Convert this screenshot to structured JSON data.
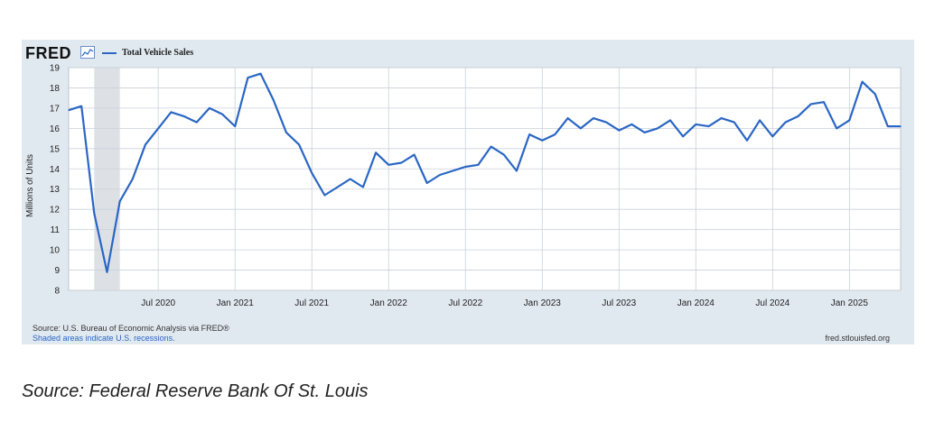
{
  "brand": {
    "logo_text": "FRED"
  },
  "footer": {
    "source": "Source: U.S. Bureau of Economic Analysis via FRED®",
    "recession_note": "Shaded areas indicate U.S. recessions.",
    "url": "fred.stlouisfed.org"
  },
  "caption": "Source: Federal Reserve Bank Of St. Louis",
  "chart_data": {
    "type": "line",
    "title": "",
    "xlabel": "",
    "ylabel": "Millions of Units",
    "ylim": [
      8,
      19
    ],
    "yticks": [
      8,
      9,
      10,
      11,
      12,
      13,
      14,
      15,
      16,
      17,
      18,
      19
    ],
    "x_start": "2020-01",
    "x_end": "2025-06",
    "xtick_labels": [
      "Jul 2020",
      "Jan 2021",
      "Jul 2021",
      "Jan 2022",
      "Jul 2022",
      "Jan 2023",
      "Jul 2023",
      "Jan 2024",
      "Jul 2024",
      "Jan 2025"
    ],
    "xtick_months": [
      "2020-07",
      "2021-01",
      "2021-07",
      "2022-01",
      "2022-07",
      "2023-01",
      "2023-07",
      "2024-01",
      "2024-07",
      "2025-01"
    ],
    "grid": true,
    "legend_position": "top-left",
    "recessions": [
      {
        "start": "2020-02",
        "end": "2020-04"
      }
    ],
    "series": [
      {
        "name": "Total Vehicle Sales",
        "color": "#2a66c4",
        "x": [
          "2019-12",
          "2020-01",
          "2020-02",
          "2020-03",
          "2020-04",
          "2020-05",
          "2020-06",
          "2020-07",
          "2020-08",
          "2020-09",
          "2020-10",
          "2020-11",
          "2020-12",
          "2021-01",
          "2021-02",
          "2021-03",
          "2021-04",
          "2021-05",
          "2021-06",
          "2021-07",
          "2021-08",
          "2021-09",
          "2021-10",
          "2021-11",
          "2021-12",
          "2022-01",
          "2022-02",
          "2022-03",
          "2022-04",
          "2022-05",
          "2022-06",
          "2022-07",
          "2022-08",
          "2022-09",
          "2022-10",
          "2022-11",
          "2022-12",
          "2023-01",
          "2023-02",
          "2023-03",
          "2023-04",
          "2023-05",
          "2023-06",
          "2023-07",
          "2023-08",
          "2023-09",
          "2023-10",
          "2023-11",
          "2023-12",
          "2024-01",
          "2024-02",
          "2024-03",
          "2024-04",
          "2024-05",
          "2024-06",
          "2024-07",
          "2024-08",
          "2024-09",
          "2024-10",
          "2024-11",
          "2024-12",
          "2025-01",
          "2025-02",
          "2025-03",
          "2025-04",
          "2025-05"
        ],
        "values": [
          16.9,
          17.1,
          11.8,
          8.9,
          12.4,
          13.5,
          15.2,
          16.0,
          16.8,
          16.6,
          16.3,
          17.0,
          16.7,
          16.1,
          18.5,
          18.7,
          17.4,
          15.8,
          15.2,
          13.8,
          12.7,
          13.1,
          13.5,
          13.1,
          14.8,
          14.2,
          14.3,
          14.7,
          13.3,
          13.7,
          13.9,
          14.1,
          14.2,
          15.1,
          14.7,
          13.9,
          15.7,
          15.4,
          15.7,
          16.5,
          16.0,
          16.5,
          16.3,
          15.9,
          16.2,
          15.8,
          16.0,
          16.4,
          15.6,
          16.2,
          16.1,
          16.5,
          16.3,
          15.4,
          16.4,
          15.6,
          16.3,
          16.6,
          17.2,
          17.3,
          16.0,
          16.4,
          18.3,
          17.7,
          16.1,
          16.1
        ]
      }
    ]
  }
}
